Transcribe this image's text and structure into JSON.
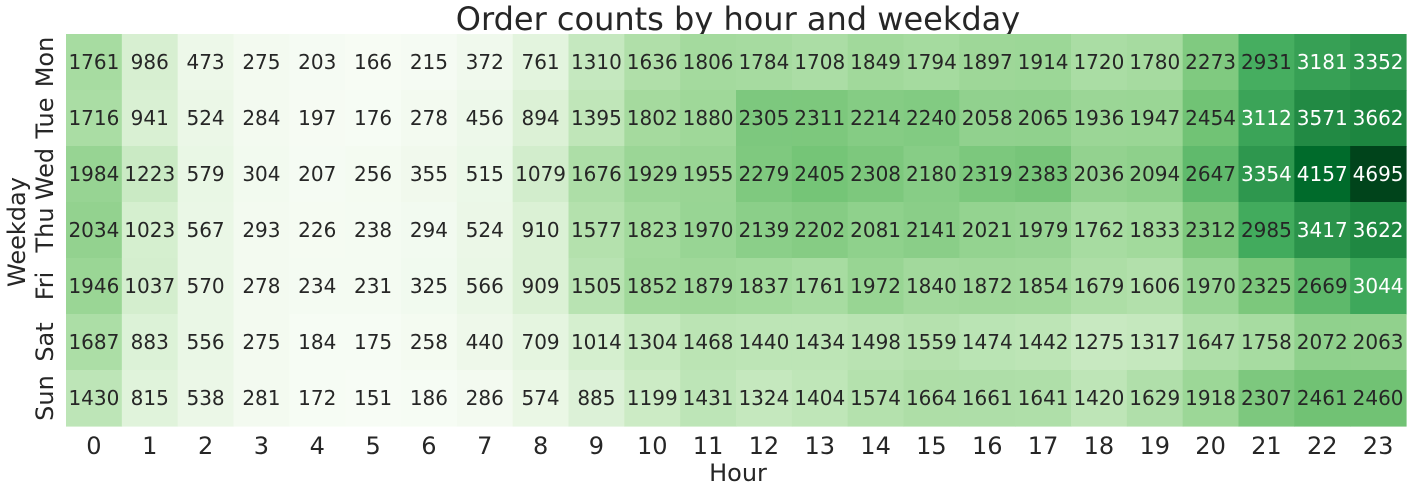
{
  "chart_data": {
    "type": "heatmap",
    "title": "Order counts by hour and weekday",
    "xlabel": "Hour",
    "ylabel": "Weekday",
    "x_categories": [
      "0",
      "1",
      "2",
      "3",
      "4",
      "5",
      "6",
      "7",
      "8",
      "9",
      "10",
      "11",
      "12",
      "13",
      "14",
      "15",
      "16",
      "17",
      "18",
      "19",
      "20",
      "21",
      "22",
      "23"
    ],
    "y_categories": [
      "Mon",
      "Tue",
      "Wed",
      "Thu",
      "Fri",
      "Sat",
      "Sun"
    ],
    "values": [
      [
        1761,
        986,
        473,
        275,
        203,
        166,
        215,
        372,
        761,
        1310,
        1636,
        1806,
        1784,
        1708,
        1849,
        1794,
        1897,
        1914,
        1720,
        1780,
        2273,
        2931,
        3181,
        3352
      ],
      [
        1716,
        941,
        524,
        284,
        197,
        176,
        278,
        456,
        894,
        1395,
        1802,
        1880,
        2305,
        2311,
        2214,
        2240,
        2058,
        2065,
        1936,
        1947,
        2454,
        3112,
        3571,
        3662
      ],
      [
        1984,
        1223,
        579,
        304,
        207,
        256,
        355,
        515,
        1079,
        1676,
        1929,
        1955,
        2279,
        2405,
        2308,
        2180,
        2319,
        2383,
        2036,
        2094,
        2647,
        3354,
        4157,
        4695
      ],
      [
        2034,
        1023,
        567,
        293,
        226,
        238,
        294,
        524,
        910,
        1577,
        1823,
        1970,
        2139,
        2202,
        2081,
        2141,
        2021,
        1979,
        1762,
        1833,
        2312,
        2985,
        3417,
        3622
      ],
      [
        1946,
        1037,
        570,
        278,
        234,
        231,
        325,
        566,
        909,
        1505,
        1852,
        1879,
        1837,
        1761,
        1972,
        1840,
        1872,
        1854,
        1679,
        1606,
        1970,
        2325,
        2669,
        3044
      ],
      [
        1687,
        883,
        556,
        275,
        184,
        175,
        258,
        440,
        709,
        1014,
        1304,
        1468,
        1440,
        1434,
        1498,
        1559,
        1474,
        1442,
        1275,
        1317,
        1647,
        1758,
        2072,
        2063
      ],
      [
        1430,
        815,
        538,
        281,
        172,
        151,
        186,
        286,
        574,
        885,
        1199,
        1431,
        1324,
        1404,
        1574,
        1664,
        1661,
        1641,
        1420,
        1629,
        1918,
        2307,
        2461,
        2460
      ]
    ],
    "colormap": "Greens",
    "annotated": true,
    "colorbar": false
  }
}
